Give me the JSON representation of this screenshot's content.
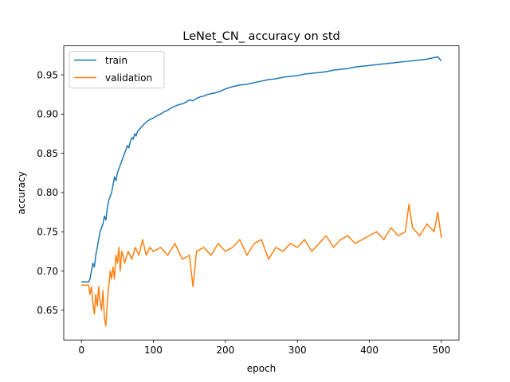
{
  "chart_data": {
    "type": "line",
    "title": "LeNet_CN_ accuracy on std",
    "xlabel": "epoch",
    "ylabel": "accuracy",
    "xlim": [
      -24.5,
      524.5
    ],
    "ylim": [
      0.612,
      0.987
    ],
    "xticks": [
      0,
      100,
      200,
      300,
      400,
      500
    ],
    "xtick_labels": [
      "0",
      "100",
      "200",
      "300",
      "400",
      "500"
    ],
    "yticks": [
      0.65,
      0.7,
      0.75,
      0.8,
      0.85,
      0.9,
      0.95
    ],
    "ytick_labels": [
      "0.65",
      "0.70",
      "0.75",
      "0.80",
      "0.85",
      "0.90",
      "0.95"
    ],
    "grid": false,
    "legend": "top-left",
    "series": [
      {
        "name": "train",
        "color": "#1f77b4",
        "x": [
          0,
          5,
          10,
          12,
          14,
          16,
          18,
          20,
          22,
          24,
          26,
          28,
          30,
          32,
          34,
          36,
          38,
          40,
          42,
          44,
          46,
          48,
          50,
          52,
          54,
          56,
          58,
          60,
          62,
          64,
          66,
          68,
          70,
          72,
          74,
          76,
          78,
          80,
          85,
          90,
          95,
          100,
          105,
          110,
          115,
          120,
          125,
          130,
          135,
          140,
          145,
          150,
          155,
          160,
          165,
          170,
          175,
          180,
          185,
          190,
          195,
          200,
          210,
          220,
          230,
          240,
          250,
          260,
          270,
          280,
          290,
          300,
          310,
          320,
          330,
          340,
          350,
          360,
          370,
          380,
          390,
          400,
          410,
          420,
          430,
          440,
          450,
          460,
          470,
          480,
          490,
          495,
          500
        ],
        "y": [
          0.686,
          0.686,
          0.686,
          0.69,
          0.7,
          0.71,
          0.705,
          0.72,
          0.73,
          0.74,
          0.75,
          0.755,
          0.76,
          0.77,
          0.765,
          0.78,
          0.79,
          0.795,
          0.8,
          0.81,
          0.82,
          0.815,
          0.825,
          0.83,
          0.835,
          0.84,
          0.845,
          0.85,
          0.855,
          0.86,
          0.857,
          0.865,
          0.87,
          0.868,
          0.875,
          0.872,
          0.878,
          0.88,
          0.885,
          0.89,
          0.893,
          0.895,
          0.898,
          0.9,
          0.903,
          0.905,
          0.908,
          0.91,
          0.912,
          0.913,
          0.915,
          0.918,
          0.917,
          0.92,
          0.922,
          0.923,
          0.925,
          0.926,
          0.927,
          0.928,
          0.93,
          0.932,
          0.935,
          0.937,
          0.938,
          0.94,
          0.942,
          0.944,
          0.945,
          0.947,
          0.948,
          0.949,
          0.951,
          0.952,
          0.953,
          0.954,
          0.956,
          0.957,
          0.958,
          0.96,
          0.961,
          0.962,
          0.963,
          0.964,
          0.965,
          0.966,
          0.967,
          0.968,
          0.969,
          0.97,
          0.972,
          0.973,
          0.968
        ]
      },
      {
        "name": "validation",
        "color": "#ff7f0e",
        "x": [
          0,
          5,
          10,
          12,
          14,
          16,
          18,
          20,
          22,
          24,
          26,
          28,
          30,
          32,
          34,
          36,
          38,
          40,
          42,
          44,
          46,
          48,
          50,
          52,
          54,
          56,
          58,
          60,
          65,
          70,
          75,
          80,
          85,
          90,
          95,
          100,
          110,
          120,
          130,
          140,
          150,
          155,
          160,
          170,
          180,
          190,
          200,
          210,
          220,
          230,
          240,
          250,
          260,
          270,
          280,
          290,
          300,
          310,
          320,
          330,
          340,
          350,
          360,
          370,
          380,
          390,
          400,
          410,
          420,
          430,
          440,
          450,
          455,
          460,
          470,
          480,
          490,
          495,
          500
        ],
        "y": [
          0.682,
          0.682,
          0.682,
          0.67,
          0.68,
          0.66,
          0.645,
          0.67,
          0.655,
          0.68,
          0.66,
          0.65,
          0.675,
          0.64,
          0.63,
          0.66,
          0.68,
          0.7,
          0.69,
          0.705,
          0.69,
          0.72,
          0.71,
          0.73,
          0.7,
          0.725,
          0.72,
          0.71,
          0.725,
          0.715,
          0.73,
          0.72,
          0.74,
          0.72,
          0.73,
          0.725,
          0.73,
          0.72,
          0.735,
          0.715,
          0.72,
          0.68,
          0.725,
          0.73,
          0.72,
          0.735,
          0.725,
          0.73,
          0.74,
          0.72,
          0.735,
          0.74,
          0.715,
          0.73,
          0.725,
          0.735,
          0.73,
          0.74,
          0.725,
          0.735,
          0.745,
          0.73,
          0.74,
          0.745,
          0.735,
          0.74,
          0.745,
          0.75,
          0.74,
          0.755,
          0.745,
          0.75,
          0.785,
          0.755,
          0.745,
          0.76,
          0.75,
          0.775,
          0.742
        ]
      }
    ]
  }
}
